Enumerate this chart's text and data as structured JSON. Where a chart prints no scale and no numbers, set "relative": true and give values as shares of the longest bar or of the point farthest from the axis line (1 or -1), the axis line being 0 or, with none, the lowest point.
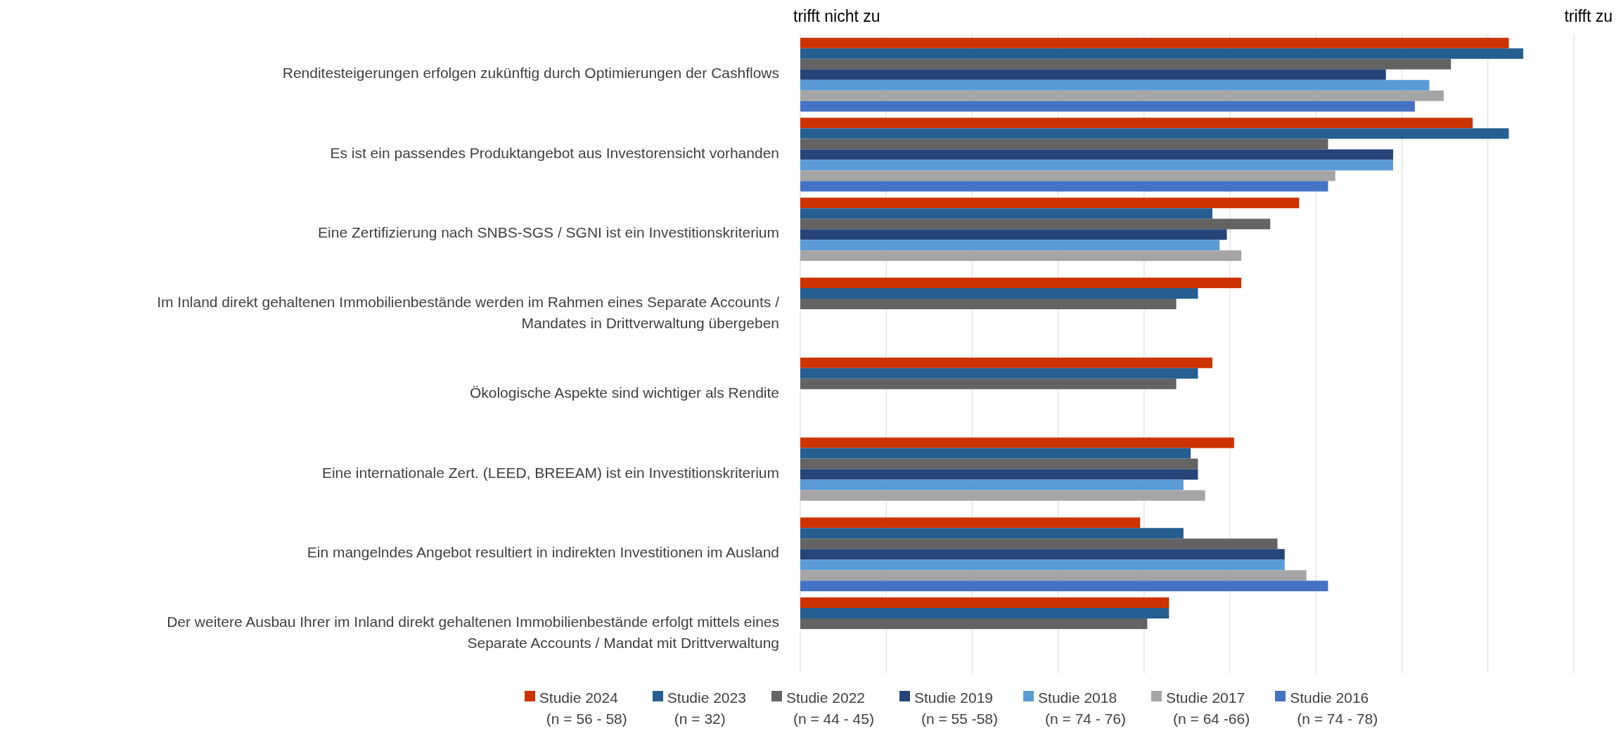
{
  "chart_data": {
    "type": "bar",
    "orientation": "horizontal",
    "relative": true,
    "categories": [
      "Renditesteigerungen erfolgen zukünftig durch Optimierungen der Cashflows",
      "Es ist ein passendes Produktangebot aus Investorensicht vorhanden",
      "Eine Zertifizierung nach SNBS-SGS / SGNI ist ein Investitionskriterium",
      "Im Inland direkt gehaltenen Immobilienbestände werden im Rahmen eines Separate Accounts / Mandates in Drittverwaltung übergeben",
      "Ökologische Aspekte sind wichtiger als Rendite",
      "Eine internationale Zert. (LEED, BREEAM) ist ein Investitionskriterium",
      "Ein mangelndes Angebot resultiert in indirekten Investitionen im Ausland",
      "Der weitere Ausbau Ihrer im Inland direkt gehaltenen Immobilienbestände erfolgt mittels eines Separate Accounts / Mandat mit Drittverwaltung"
    ],
    "series": [
      {
        "name": "Studie 2024\n(n = 56 - 58)",
        "color": "#cc3300",
        "values": [
          0.98,
          0.93,
          0.69,
          0.61,
          0.57,
          0.6,
          0.47,
          0.51
        ]
      },
      {
        "name": "Studie 2023\n(n = 32)",
        "color": "#255e91",
        "values": [
          1,
          0.98,
          0.57,
          0.55,
          0.55,
          0.54,
          0.53,
          0.51
        ]
      },
      {
        "name": "Studie 2022\n(n = 44 - 45)",
        "color": "#636363",
        "values": [
          0.9,
          0.73,
          0.65,
          0.52,
          0.52,
          0.55,
          0.66,
          0.48
        ]
      },
      {
        "name": "Studie 2019\n(n = 55 -58)",
        "color": "#264478",
        "values": [
          0.81,
          0.82,
          0.59,
          null,
          null,
          0.55,
          0.67,
          null
        ]
      },
      {
        "name": "Studie 2018\n(n = 74 - 76)",
        "color": "#5b9bd5",
        "values": [
          0.87,
          0.82,
          0.58,
          null,
          null,
          0.53,
          0.67,
          null
        ]
      },
      {
        "name": "Studie 2017\n(n = 64 -66)",
        "color": "#a5a5a5",
        "values": [
          0.89,
          0.74,
          0.61,
          null,
          null,
          0.56,
          0.7,
          null
        ]
      },
      {
        "name": "Studie 2016\n(n = 74 - 78)",
        "color": "#4472c4",
        "values": [
          0.85,
          0.73,
          null,
          null,
          null,
          null,
          0.73,
          null
        ]
      }
    ],
    "annotations": [
      "trifft nicht zu",
      "trifft zu"
    ],
    "grid": "x",
    "legend": "bottom"
  }
}
